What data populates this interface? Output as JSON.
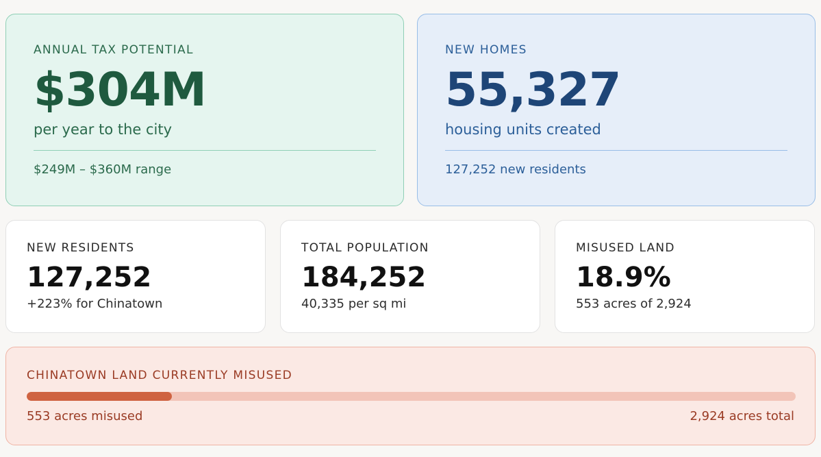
{
  "tax": {
    "label": "ANNUAL TAX POTENTIAL",
    "value": "$304M",
    "sub": "per year to the city",
    "range": "$249M – $360M range"
  },
  "homes": {
    "label": "NEW HOMES",
    "value": "55,327",
    "sub": "housing units created",
    "residents": "127,252 new residents"
  },
  "stats": [
    {
      "label": "NEW RESIDENTS",
      "value": "127,252",
      "sub": "+223% for Chinatown"
    },
    {
      "label": "TOTAL POPULATION",
      "value": "184,252",
      "sub": "40,335 per sq mi"
    },
    {
      "label": "MISUSED LAND",
      "value": "18.9%",
      "sub": "553 acres of 2,924"
    }
  ],
  "land": {
    "label": "CHINATOWN LAND CURRENTLY MISUSED",
    "progress_fraction": 0.189,
    "left_text": "553 acres misused",
    "right_text": "2,924 acres total"
  }
}
